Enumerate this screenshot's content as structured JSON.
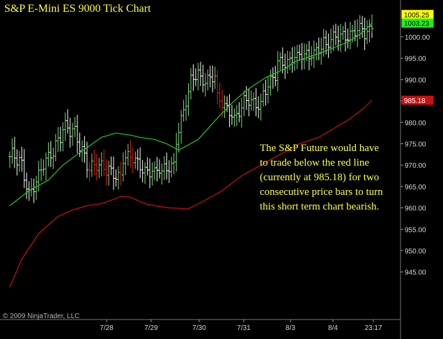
{
  "title": "S&P E-Mini ES 9000 Tick Chart",
  "copyright": "© 2009 NinjaTrader, LLC",
  "annotation": [
    "The S&P Future would have",
    "to trade below the red line",
    "(currently at 985.18)  for two",
    "consecutive price bars to turn",
    "this short term chart bearish."
  ],
  "colors": {
    "background": "#000000",
    "up_bar": "#7ddc7d",
    "down_bar": "#e02020",
    "neutral_bar": "#ffffff",
    "fast_ma": "#22cc22",
    "slow_ma": "#cc1111",
    "text": "#ffff44"
  },
  "chart_data": {
    "type": "ohlc",
    "title": "S&P E-Mini ES 9000 Tick Chart",
    "y_axis": {
      "ticks": [
        "1000.00",
        "995.00",
        "990.00",
        "985.00",
        "980.00",
        "975.00",
        "970.00",
        "965.00",
        "960.00",
        "955.00",
        "950.00",
        "945.00"
      ],
      "tick_values": [
        1000,
        995,
        990,
        985,
        980,
        975,
        970,
        965,
        960,
        955,
        950,
        945
      ]
    },
    "x_axis": {
      "ticks": [
        "7/28",
        "7/29",
        "7/30",
        "7/31",
        "8/3",
        "8/4",
        "23:17"
      ]
    },
    "price_labels": [
      {
        "text": "1005.25",
        "value": 1005.25,
        "style": "last-high"
      },
      {
        "text": "1003.23",
        "value": 1003.23,
        "style": "fast-ma"
      },
      {
        "text": "985.18",
        "value": 985.18,
        "style": "slow-ma"
      }
    ],
    "series": [
      {
        "name": "",
        "kind": "moving-average-fast",
        "color": "#22cc22",
        "x": [
          0,
          8,
          16,
          22,
          28,
          33,
          38,
          44,
          50,
          54,
          60,
          65,
          70,
          78,
          86,
          92,
          98,
          106,
          110,
          114,
          118,
          125,
          132,
          136,
          140,
          146,
          150
        ],
        "y": [
          960.5,
          964,
          966.5,
          970,
          972.5,
          974.5,
          976.5,
          977.5,
          977,
          976.5,
          976,
          975,
          973.5,
          976,
          981,
          984.5,
          987.5,
          990.5,
          991.5,
          992.5,
          994.2,
          995.5,
          997,
          997.9,
          998.8,
          1001,
          1003.23
        ]
      },
      {
        "name": "",
        "kind": "moving-average-slow",
        "color": "#cc1111",
        "x": [
          0,
          5,
          12,
          20,
          26,
          32,
          38,
          43,
          46,
          50,
          56,
          60,
          66,
          74,
          80,
          88,
          96,
          104,
          112,
          120,
          128,
          134,
          140,
          146,
          150
        ],
        "y": [
          941.5,
          948,
          954,
          958,
          959.5,
          960.5,
          961,
          962,
          962.7,
          962.5,
          961,
          960.5,
          960,
          959.8,
          961.5,
          964,
          967.5,
          970,
          972.5,
          975,
          976.5,
          978.5,
          980.5,
          983,
          985.18
        ]
      },
      {
        "name": "",
        "kind": "ohlc-bars",
        "segments": [
          {
            "from": 0,
            "to": 5,
            "start": 972,
            "end": 969,
            "amp": 3
          },
          {
            "from": 5,
            "to": 8,
            "start": 969,
            "end": 964,
            "amp": 2
          },
          {
            "from": 8,
            "to": 17,
            "start": 964,
            "end": 972,
            "amp": 2
          },
          {
            "from": 17,
            "to": 22,
            "start": 972,
            "end": 980,
            "amp": 3
          },
          {
            "from": 22,
            "to": 33,
            "start": 980,
            "end": 971,
            "amp": 3
          },
          {
            "from": 33,
            "to": 40,
            "start": 971,
            "end": 968,
            "amp": 2
          },
          {
            "from": 40,
            "to": 46,
            "start": 969,
            "end": 968,
            "amp": 2
          },
          {
            "from": 46,
            "to": 58,
            "start": 972,
            "end": 969,
            "amp": 2
          },
          {
            "from": 58,
            "to": 63,
            "start": 969,
            "end": 968,
            "amp": 1
          },
          {
            "from": 63,
            "to": 68,
            "start": 968,
            "end": 971,
            "amp": 2
          },
          {
            "from": 68,
            "to": 74,
            "start": 975,
            "end": 986,
            "amp": 2
          },
          {
            "from": 74,
            "to": 78,
            "start": 988,
            "end": 992,
            "amp": 2
          },
          {
            "from": 78,
            "to": 85,
            "start": 991,
            "end": 990,
            "amp": 2
          },
          {
            "from": 85,
            "to": 92,
            "start": 985,
            "end": 983,
            "amp": 2
          },
          {
            "from": 92,
            "to": 96,
            "start": 981,
            "end": 983,
            "amp": 2
          },
          {
            "from": 96,
            "to": 104,
            "start": 984,
            "end": 985,
            "amp": 2
          },
          {
            "from": 104,
            "to": 110,
            "start": 987,
            "end": 990,
            "amp": 2
          },
          {
            "from": 110,
            "to": 118,
            "start": 993,
            "end": 996,
            "amp": 2
          },
          {
            "from": 118,
            "to": 124,
            "start": 995,
            "end": 995,
            "amp": 2
          },
          {
            "from": 124,
            "to": 130,
            "start": 996,
            "end": 999,
            "amp": 2
          },
          {
            "from": 130,
            "to": 138,
            "start": 997,
            "end": 1001,
            "amp": 2
          },
          {
            "from": 138,
            "to": 146,
            "start": 1001,
            "end": 1001,
            "amp": 2
          },
          {
            "from": 146,
            "to": 150,
            "start": 999,
            "end": 1003,
            "amp": 1.5
          }
        ],
        "bar_count": 151,
        "last_high": 1005.25
      }
    ],
    "grid": false
  }
}
